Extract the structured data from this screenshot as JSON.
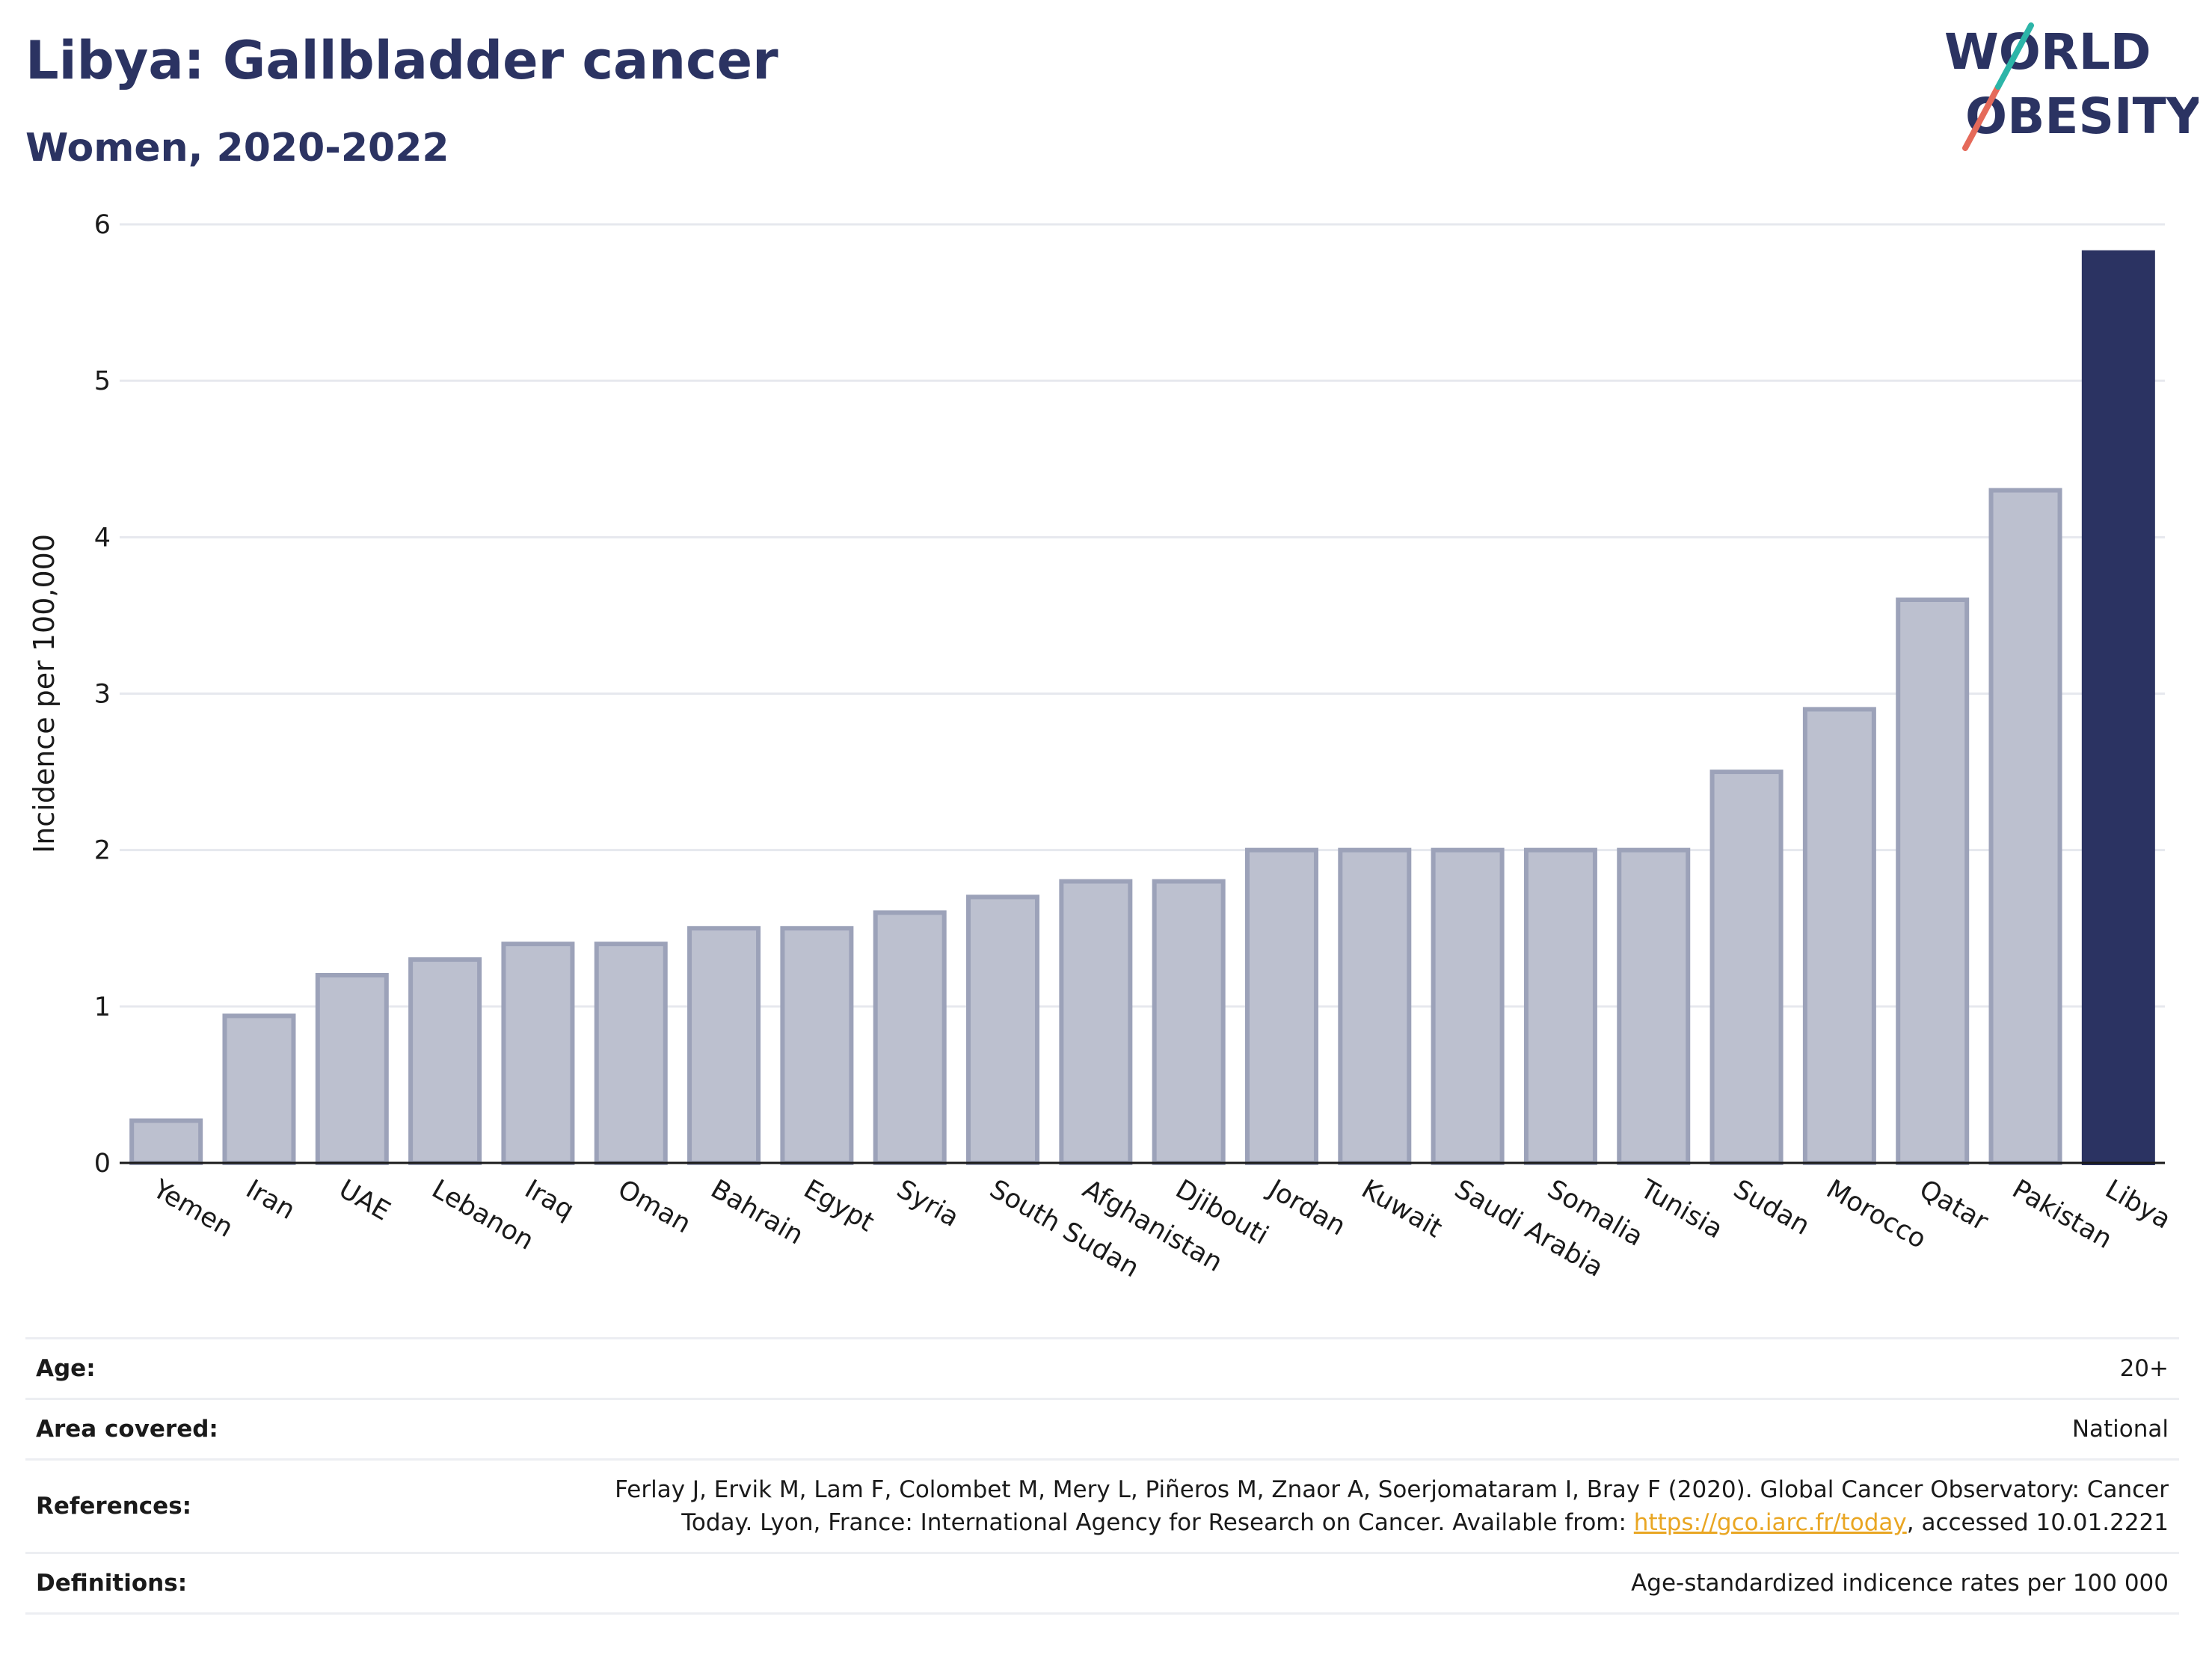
{
  "header": {
    "title": "Libya: Gallbladder cancer",
    "subtitle": "Women, 2020-2022"
  },
  "logo": {
    "line1": "WORLD",
    "line2": "OBESITY"
  },
  "chart_data": {
    "type": "bar",
    "title": "Libya: Gallbladder cancer",
    "subtitle": "Women, 2020-2022",
    "xlabel": "",
    "ylabel": "Incidence per 100,000",
    "ylim": [
      0,
      6
    ],
    "yticks": [
      0,
      1,
      2,
      3,
      4,
      5,
      6
    ],
    "grid": true,
    "legend": "none",
    "categories": [
      "Yemen",
      "Iran",
      "UAE",
      "Lebanon",
      "Iraq",
      "Oman",
      "Bahrain",
      "Egypt",
      "Syria",
      "South Sudan",
      "Afghanistan",
      "Djibouti",
      "Jordan",
      "Kuwait",
      "Saudi Arabia",
      "Somalia",
      "Tunisia",
      "Sudan",
      "Morocco",
      "Qatar",
      "Pakistan",
      "Libya"
    ],
    "values": [
      0.27,
      0.94,
      1.2,
      1.3,
      1.4,
      1.4,
      1.5,
      1.5,
      1.6,
      1.7,
      1.8,
      1.8,
      2.0,
      2.0,
      2.0,
      2.0,
      2.0,
      2.5,
      2.9,
      3.6,
      4.3,
      5.82
    ],
    "highlight": "Libya",
    "colors": {
      "default_bar": "#bcc0cf",
      "default_border": "#9ca2b9",
      "highlight_bar": "#2b3362",
      "title": "#2b3362"
    }
  },
  "info": {
    "age_label": "Age:",
    "age_value": "20+",
    "area_label": "Area covered:",
    "area_value": "National",
    "ref_label": "References:",
    "ref_text_1": "Ferlay J, Ervik M, Lam F, Colombet M, Mery L, Piñeros M, Znaor A, Soerjomataram I, Bray F (2020). Global Cancer Observatory: Cancer",
    "ref_text_2": "Today. Lyon, France: International Agency for Research on Cancer. Available from: ",
    "ref_link": "https://gco.iarc.fr/today",
    "ref_text_3": ", accessed 10.01.2221",
    "def_label": "Definitions:",
    "def_value": "Age-standardized indicence rates per 100 000"
  }
}
